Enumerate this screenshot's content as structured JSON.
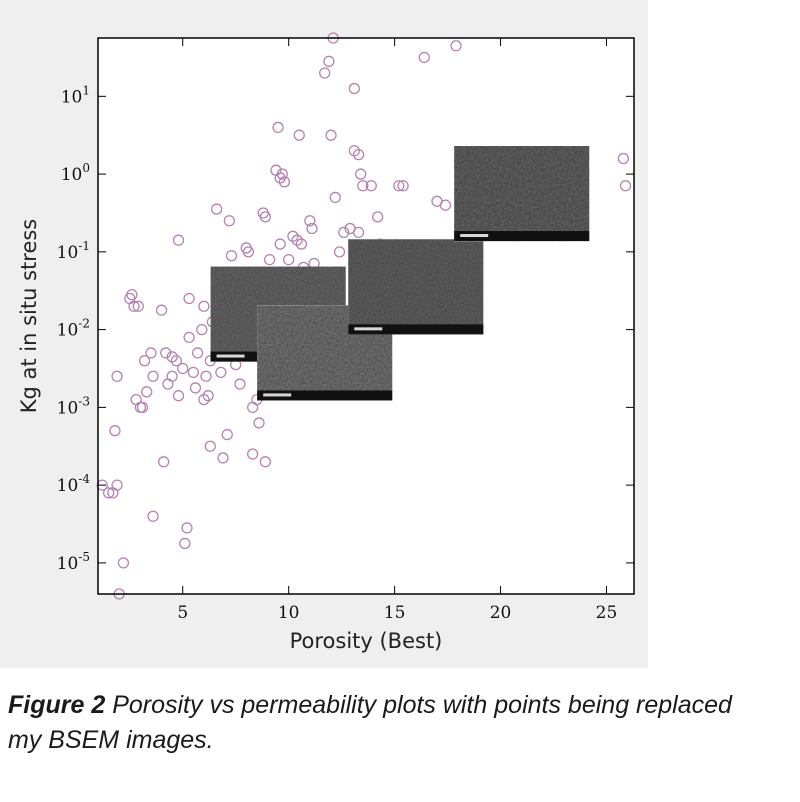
{
  "chart_data": {
    "type": "scatter",
    "title": "",
    "xlabel": "Porosity (Best)",
    "ylabel": "Kg at in situ stress",
    "xlim": [
      1,
      26.3
    ],
    "ylim": [
      -5.4,
      1.75
    ],
    "y_scale": "log",
    "x_ticks": [
      "5",
      "10",
      "15",
      "20",
      "25"
    ],
    "y_tick_base": "10",
    "y_tick_exponents": [
      "1",
      "0",
      "-1",
      "-2",
      "-3",
      "-4",
      "-5"
    ],
    "grid": false,
    "legend": "none",
    "marker": "hollow circle",
    "marker_color": "#b682b2",
    "points": [
      [
        1.2,
        -4.0
      ],
      [
        1.5,
        -4.1
      ],
      [
        1.7,
        -4.1
      ],
      [
        1.9,
        -4.0
      ],
      [
        1.8,
        -3.3
      ],
      [
        1.9,
        -2.6
      ],
      [
        2.2,
        -5.0
      ],
      [
        2.0,
        -5.4
      ],
      [
        2.5,
        -1.6
      ],
      [
        2.6,
        -1.55
      ],
      [
        2.7,
        -1.7
      ],
      [
        2.8,
        -2.9
      ],
      [
        3.0,
        -3.0
      ],
      [
        3.1,
        -3.0
      ],
      [
        3.3,
        -2.8
      ],
      [
        3.5,
        -2.3
      ],
      [
        3.6,
        -2.6
      ],
      [
        3.6,
        -4.4
      ],
      [
        4.0,
        -1.75
      ],
      [
        4.2,
        -2.3
      ],
      [
        4.1,
        -3.7
      ],
      [
        4.5,
        -2.35
      ],
      [
        4.5,
        -2.6
      ],
      [
        4.7,
        -2.4
      ],
      [
        4.8,
        -0.85
      ],
      [
        4.8,
        -2.85
      ],
      [
        5.0,
        -2.5
      ],
      [
        5.1,
        -4.75
      ],
      [
        5.2,
        -4.55
      ],
      [
        5.3,
        -1.6
      ],
      [
        5.3,
        -2.1
      ],
      [
        5.5,
        -2.55
      ],
      [
        5.7,
        -2.3
      ],
      [
        5.9,
        -2.0
      ],
      [
        6.0,
        -1.7
      ],
      [
        6.1,
        -2.6
      ],
      [
        6.2,
        -2.85
      ],
      [
        6.3,
        -3.5
      ],
      [
        6.4,
        -1.9
      ],
      [
        6.6,
        -0.45
      ],
      [
        6.7,
        -2.2
      ],
      [
        6.8,
        -2.55
      ],
      [
        6.9,
        -3.65
      ],
      [
        7.1,
        -3.35
      ],
      [
        7.3,
        -1.05
      ],
      [
        7.5,
        -2.45
      ],
      [
        7.7,
        -2.7
      ],
      [
        7.9,
        -2.2
      ],
      [
        8.0,
        -0.95
      ],
      [
        8.1,
        -1.0
      ],
      [
        8.3,
        -3.0
      ],
      [
        8.3,
        -3.6
      ],
      [
        8.5,
        -2.9
      ],
      [
        8.6,
        -3.2
      ],
      [
        8.8,
        -0.5
      ],
      [
        8.9,
        -0.55
      ],
      [
        8.9,
        -3.7
      ],
      [
        9.1,
        -1.1
      ],
      [
        9.2,
        -2.75
      ],
      [
        9.4,
        0.05
      ],
      [
        9.5,
        0.6
      ],
      [
        9.6,
        -0.05
      ],
      [
        9.6,
        -0.9
      ],
      [
        9.8,
        -0.1
      ],
      [
        10.0,
        -1.1
      ],
      [
        10.2,
        -0.8
      ],
      [
        10.4,
        -0.85
      ],
      [
        10.5,
        0.5
      ],
      [
        10.6,
        -0.9
      ],
      [
        10.9,
        -1.45
      ],
      [
        11.0,
        -0.6
      ],
      [
        11.2,
        -1.15
      ],
      [
        11.4,
        -1.3
      ],
      [
        11.7,
        1.3
      ],
      [
        11.9,
        1.45
      ],
      [
        12.0,
        0.5
      ],
      [
        12.2,
        -0.3
      ],
      [
        12.4,
        -1.0
      ],
      [
        12.6,
        -0.75
      ],
      [
        12.9,
        -0.7
      ],
      [
        13.1,
        1.1
      ],
      [
        13.1,
        0.3
      ],
      [
        13.3,
        0.25
      ],
      [
        13.4,
        0.0
      ],
      [
        13.5,
        -0.15
      ],
      [
        13.9,
        -0.15
      ],
      [
        14.2,
        -0.55
      ],
      [
        15.2,
        -0.15
      ],
      [
        15.4,
        -0.15
      ],
      [
        16.4,
        1.5
      ],
      [
        17.0,
        -0.35
      ],
      [
        17.4,
        -0.4
      ],
      [
        18.1,
        -0.35
      ],
      [
        19.2,
        -0.35
      ],
      [
        12.1,
        1.75
      ],
      [
        17.9,
        1.65
      ],
      [
        25.8,
        0.2
      ],
      [
        25.9,
        -0.15
      ],
      [
        2.9,
        -1.7
      ],
      [
        5.6,
        -2.75
      ],
      [
        4.3,
        -2.7
      ],
      [
        3.2,
        -2.4
      ],
      [
        6.3,
        -2.4
      ],
      [
        7.6,
        -1.5
      ],
      [
        9.7,
        0.0
      ],
      [
        7.2,
        -0.6
      ],
      [
        8.2,
        -1.6
      ],
      [
        10.7,
        -1.2
      ],
      [
        11.1,
        -0.7
      ],
      [
        13.3,
        -0.75
      ],
      [
        14.3,
        -0.9
      ],
      [
        6.0,
        -2.9
      ]
    ],
    "image_overlays": [
      {
        "name": "BSEM image 1",
        "anchor_porosity": 9.5,
        "anchor_log10_kg": -1.8
      },
      {
        "name": "BSEM image 2",
        "anchor_porosity": 11.7,
        "anchor_log10_kg": -2.3
      },
      {
        "name": "BSEM image 3",
        "anchor_porosity": 16.0,
        "anchor_log10_kg": -1.45
      },
      {
        "name": "BSEM image 4",
        "anchor_porosity": 21.0,
        "anchor_log10_kg": -0.25
      }
    ]
  },
  "caption": {
    "label": "Figure 2",
    "text": " Porosity vs permeability plots with points being replaced my BSEM images."
  }
}
